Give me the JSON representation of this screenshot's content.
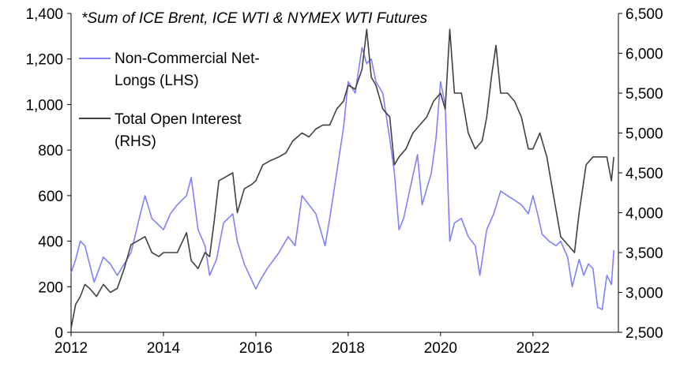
{
  "chart_data": {
    "type": "line",
    "title": "*Sum of ICE Brent, ICE WTI & NYMEX WTI Futures",
    "xlabel": "",
    "ylabel": "",
    "y2label": "",
    "xlim": [
      2012,
      2023.85
    ],
    "ylim": [
      0,
      1400
    ],
    "y2lim": [
      2500,
      6500
    ],
    "x_ticks": [
      "2012",
      "2014",
      "2016",
      "2018",
      "2020",
      "2022"
    ],
    "y_ticks": [
      "0",
      "200",
      "400",
      "600",
      "800",
      "1,000",
      "1,200",
      "1,400"
    ],
    "y2_ticks": [
      "2,500",
      "3,000",
      "3,500",
      "4,000",
      "4,500",
      "5,000",
      "5,500",
      "6,000",
      "6,500"
    ],
    "grid": false,
    "legend_position": "top-left",
    "series": [
      {
        "name": "Non-Commercial Net-Longs (LHS)",
        "legend_lines": [
          "Non-Commercial Net-",
          "Longs (LHS)"
        ],
        "axis": "left",
        "color": "#8080ff",
        "x": [
          2012.0,
          2012.1,
          2012.2,
          2012.3,
          2012.4,
          2012.5,
          2012.7,
          2012.85,
          2013.0,
          2013.15,
          2013.3,
          2013.5,
          2013.6,
          2013.75,
          2014.0,
          2014.15,
          2014.3,
          2014.5,
          2014.6,
          2014.75,
          2014.9,
          2015.0,
          2015.15,
          2015.3,
          2015.5,
          2015.6,
          2015.75,
          2016.0,
          2016.1,
          2016.25,
          2016.5,
          2016.7,
          2016.85,
          2017.0,
          2017.15,
          2017.3,
          2017.5,
          2017.6,
          2017.75,
          2017.9,
          2018.0,
          2018.15,
          2018.3,
          2018.4,
          2018.5,
          2018.6,
          2018.75,
          2018.9,
          2019.0,
          2019.1,
          2019.2,
          2019.35,
          2019.5,
          2019.6,
          2019.8,
          2019.9,
          2020.0,
          2020.1,
          2020.2,
          2020.3,
          2020.45,
          2020.6,
          2020.75,
          2020.85,
          2021.0,
          2021.15,
          2021.3,
          2021.45,
          2021.6,
          2021.75,
          2021.9,
          2022.0,
          2022.1,
          2022.2,
          2022.35,
          2022.5,
          2022.6,
          2022.75,
          2022.85,
          2023.0,
          2023.1,
          2023.2,
          2023.3,
          2023.4,
          2023.5,
          2023.6,
          2023.7,
          2023.75
        ],
        "y": [
          260,
          320,
          400,
          380,
          300,
          220,
          330,
          300,
          250,
          300,
          350,
          520,
          600,
          500,
          450,
          520,
          560,
          600,
          680,
          450,
          380,
          250,
          320,
          480,
          520,
          400,
          300,
          190,
          230,
          280,
          350,
          420,
          380,
          600,
          560,
          520,
          380,
          500,
          700,
          900,
          1100,
          1050,
          1250,
          1180,
          1200,
          1100,
          1050,
          850,
          700,
          450,
          500,
          640,
          780,
          560,
          700,
          850,
          1100,
          1000,
          400,
          480,
          500,
          420,
          380,
          250,
          450,
          520,
          620,
          600,
          580,
          560,
          520,
          600,
          520,
          430,
          400,
          380,
          400,
          330,
          200,
          320,
          250,
          300,
          280,
          110,
          100,
          250,
          210,
          360
        ]
      },
      {
        "name": "Total Open Interest (RHS)",
        "legend_lines": [
          "Total Open Interest",
          "(RHS)"
        ],
        "axis": "right",
        "color": "#404040",
        "x": [
          2012.0,
          2012.1,
          2012.2,
          2012.3,
          2012.4,
          2012.55,
          2012.7,
          2012.85,
          2013.0,
          2013.15,
          2013.3,
          2013.45,
          2013.6,
          2013.75,
          2013.9,
          2014.0,
          2014.15,
          2014.3,
          2014.5,
          2014.6,
          2014.75,
          2014.9,
          2015.0,
          2015.1,
          2015.2,
          2015.35,
          2015.5,
          2015.6,
          2015.75,
          2015.9,
          2016.0,
          2016.15,
          2016.3,
          2016.5,
          2016.65,
          2016.8,
          2017.0,
          2017.15,
          2017.3,
          2017.45,
          2017.6,
          2017.75,
          2017.9,
          2018.0,
          2018.15,
          2018.3,
          2018.4,
          2018.5,
          2018.6,
          2018.75,
          2018.9,
          2019.0,
          2019.1,
          2019.25,
          2019.4,
          2019.55,
          2019.7,
          2019.85,
          2020.0,
          2020.1,
          2020.2,
          2020.3,
          2020.45,
          2020.6,
          2020.75,
          2020.9,
          2021.0,
          2021.1,
          2021.2,
          2021.3,
          2021.45,
          2021.6,
          2021.75,
          2021.9,
          2022.0,
          2022.15,
          2022.3,
          2022.45,
          2022.6,
          2022.75,
          2022.9,
          2023.0,
          2023.15,
          2023.3,
          2023.45,
          2023.6,
          2023.7,
          2023.75
        ],
        "y": [
          2550,
          2850,
          2950,
          3100,
          3050,
          2950,
          3100,
          3000,
          3050,
          3300,
          3600,
          3650,
          3700,
          3500,
          3450,
          3500,
          3500,
          3500,
          3750,
          3400,
          3300,
          3500,
          3450,
          3900,
          4400,
          4450,
          4500,
          4000,
          4300,
          4350,
          4400,
          4600,
          4650,
          4700,
          4750,
          4900,
          5000,
          4950,
          5050,
          5100,
          5100,
          5300,
          5400,
          5600,
          5550,
          5800,
          6300,
          5700,
          5600,
          5300,
          5200,
          4600,
          4700,
          4800,
          5000,
          5100,
          5200,
          5400,
          5500,
          5300,
          6300,
          5500,
          5500,
          5000,
          4800,
          4900,
          5200,
          5700,
          6100,
          5500,
          5500,
          5400,
          5200,
          4800,
          4800,
          5000,
          4700,
          4200,
          3700,
          3600,
          3500,
          4000,
          4600,
          4700,
          4700,
          4700,
          4400,
          4700
        ]
      }
    ]
  }
}
